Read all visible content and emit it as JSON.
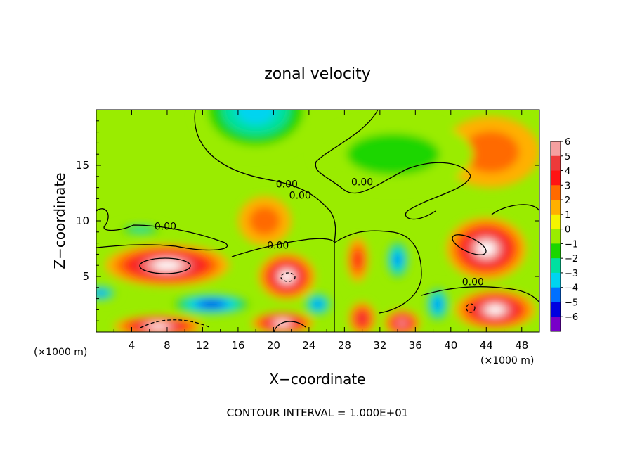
{
  "chart_data": {
    "type": "heatmap",
    "title": "zonal velocity",
    "xlabel": "X−coordinate",
    "ylabel": "Z−coordinate",
    "x_unit": "(×1000 m)",
    "y_unit": "(×1000 m)",
    "xlim": [
      0,
      50
    ],
    "ylim": [
      0,
      20
    ],
    "x_ticks": [
      4,
      8,
      12,
      16,
      20,
      24,
      28,
      32,
      36,
      40,
      44,
      48
    ],
    "y_ticks": [
      5,
      10,
      15
    ],
    "colorbar": {
      "ticks": [
        6,
        5,
        4,
        3,
        2,
        1,
        0,
        -1,
        -2,
        -3,
        -4,
        -5,
        -6
      ],
      "tick_labels": [
        "6",
        "5",
        "4",
        "3",
        "2",
        "1",
        "0",
        "−1",
        "−2",
        "−3",
        "−4",
        "−5",
        "−6"
      ],
      "colors": [
        "#f5a0a0",
        "#ee3a3a",
        "#ff1414",
        "#ff6a00",
        "#ffb000",
        "#f4f400",
        "#9aec00",
        "#1ad600",
        "#00e0a0",
        "#00d4f0",
        "#0070ff",
        "#0000e0",
        "#7800c8"
      ]
    },
    "contour_labels": [
      {
        "text": "0.00",
        "x": 21.5,
        "y": 13.0
      },
      {
        "text": "0.00",
        "x": 23.0,
        "y": 12.0
      },
      {
        "text": "0.00",
        "x": 30.0,
        "y": 13.2
      },
      {
        "text": "0.00",
        "x": 7.8,
        "y": 9.2
      },
      {
        "text": "0.00",
        "x": 20.5,
        "y": 7.5
      },
      {
        "text": "0.00",
        "x": 42.5,
        "y": 4.2
      }
    ],
    "features": [
      {
        "kind": "min",
        "x": 18,
        "y": 20,
        "value": -3.5,
        "rx": 7,
        "rz": 4.2
      },
      {
        "kind": "max",
        "x": 44.5,
        "y": 16.2,
        "value": 3.5,
        "rx": 5.5,
        "rz": 3.2
      },
      {
        "kind": "max",
        "x": 19,
        "y": 10,
        "value": 3.5,
        "rx": 3,
        "rz": 2.2
      },
      {
        "kind": "min",
        "x": 33.5,
        "y": 16,
        "value": -1.8,
        "rx": 9,
        "rz": 3.2
      },
      {
        "kind": "max",
        "x": 8,
        "y": 6,
        "value": 12,
        "rx": 7,
        "rz": 1.9
      },
      {
        "kind": "max",
        "x": 21.5,
        "y": 5,
        "value": 12,
        "rx": 3.2,
        "rz": 2.1
      },
      {
        "kind": "max",
        "x": 44,
        "y": 7.5,
        "value": 12,
        "rx": 4.5,
        "rz": 2.8
      },
      {
        "kind": "max",
        "x": 45,
        "y": 2,
        "value": 10,
        "rx": 4.5,
        "rz": 1.8
      },
      {
        "kind": "max",
        "x": 29.5,
        "y": 6.5,
        "value": 4.5,
        "rx": 1.2,
        "rz": 2.0
      },
      {
        "kind": "min",
        "x": 34,
        "y": 6.5,
        "value": -4.5,
        "rx": 1.5,
        "rz": 2.0
      },
      {
        "kind": "min",
        "x": 13,
        "y": 2.5,
        "value": -5,
        "rx": 5,
        "rz": 1.1
      },
      {
        "kind": "max",
        "x": 7,
        "y": 0.5,
        "value": 11,
        "rx": 5,
        "rz": 1.0
      },
      {
        "kind": "max",
        "x": 21,
        "y": 0.8,
        "value": 11,
        "rx": 3.5,
        "rz": 1.0
      },
      {
        "kind": "max",
        "x": 30,
        "y": 1.2,
        "value": 5,
        "rx": 1.5,
        "rz": 1.5
      },
      {
        "kind": "max",
        "x": 34.5,
        "y": 0.8,
        "value": 6,
        "rx": 2,
        "rz": 1.2
      },
      {
        "kind": "min",
        "x": 38.5,
        "y": 2.5,
        "value": -4,
        "rx": 1.5,
        "rz": 1.8
      },
      {
        "kind": "min",
        "x": 25,
        "y": 2.5,
        "value": -4,
        "rx": 1.8,
        "rz": 1.2
      },
      {
        "kind": "min",
        "x": 5,
        "y": 9.2,
        "value": -2,
        "rx": 3,
        "rz": 0.6
      },
      {
        "kind": "min",
        "x": 0.5,
        "y": 3.5,
        "value": -4,
        "rx": 2,
        "rz": 0.8
      }
    ]
  },
  "footer": {
    "x_unit_left": "(×1000 m)",
    "x_unit_right": "(×1000 m)",
    "contour_interval": "CONTOUR INTERVAL = 1.000E+01"
  }
}
